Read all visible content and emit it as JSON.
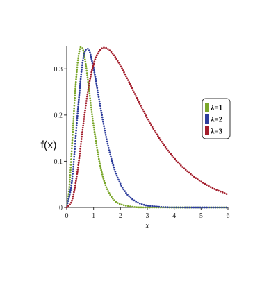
{
  "chart_data": {
    "type": "scatter",
    "xlabel": "x",
    "ylabel": "f(x)",
    "xlim": [
      0,
      6
    ],
    "ylim": [
      0,
      0.35
    ],
    "x_ticks": [
      0,
      1,
      2,
      3,
      4,
      5,
      6
    ],
    "y_ticks": [
      0,
      0.1,
      0.2,
      0.3
    ],
    "x_tick_labels": [
      "0",
      "1",
      "2",
      "3",
      "4",
      "5",
      "6"
    ],
    "y_tick_labels": [
      "0",
      "0.1",
      "0.2",
      "0.3"
    ],
    "grid": false,
    "legend_position": "right",
    "series": [
      {
        "name": "λ=1",
        "color": "#7aa62a",
        "x": [
          0,
          0.1,
          0.2,
          0.3,
          0.4,
          0.5,
          0.6,
          0.7,
          0.8,
          0.9,
          1.0,
          1.2,
          1.4,
          1.6,
          1.8,
          2.0,
          2.5,
          3.0,
          4.0,
          5.0,
          6.0
        ],
        "y": [
          0,
          0.046,
          0.137,
          0.237,
          0.31,
          0.345,
          0.343,
          0.313,
          0.27,
          0.222,
          0.177,
          0.104,
          0.056,
          0.029,
          0.014,
          0.007,
          0.001,
          0.0001,
          0,
          0,
          0
        ]
      },
      {
        "name": "λ=2",
        "color": "#2d3d9c",
        "x": [
          0,
          0.2,
          0.4,
          0.6,
          0.8,
          1.0,
          1.2,
          1.4,
          1.6,
          1.8,
          2.0,
          2.2,
          2.4,
          2.6,
          2.8,
          3.0,
          3.5,
          4.0,
          5.0,
          6.0
        ],
        "y": [
          0,
          0.06,
          0.2,
          0.318,
          0.343,
          0.301,
          0.236,
          0.172,
          0.119,
          0.079,
          0.051,
          0.032,
          0.02,
          0.012,
          0.007,
          0.004,
          0.001,
          0.0002,
          0,
          0
        ]
      },
      {
        "name": "λ=3",
        "color": "#a31d2b",
        "x": [
          0,
          0.2,
          0.4,
          0.6,
          0.8,
          1.0,
          1.2,
          1.4,
          1.6,
          1.8,
          2.0,
          2.2,
          2.4,
          2.6,
          2.8,
          3.0,
          3.4,
          3.8,
          4.2,
          4.6,
          5.0,
          5.5,
          6.0
        ],
        "y": [
          0,
          0.016,
          0.078,
          0.172,
          0.256,
          0.31,
          0.338,
          0.346,
          0.34,
          0.326,
          0.307,
          0.285,
          0.262,
          0.238,
          0.215,
          0.193,
          0.154,
          0.121,
          0.094,
          0.073,
          0.056,
          0.04,
          0.028
        ]
      }
    ]
  }
}
